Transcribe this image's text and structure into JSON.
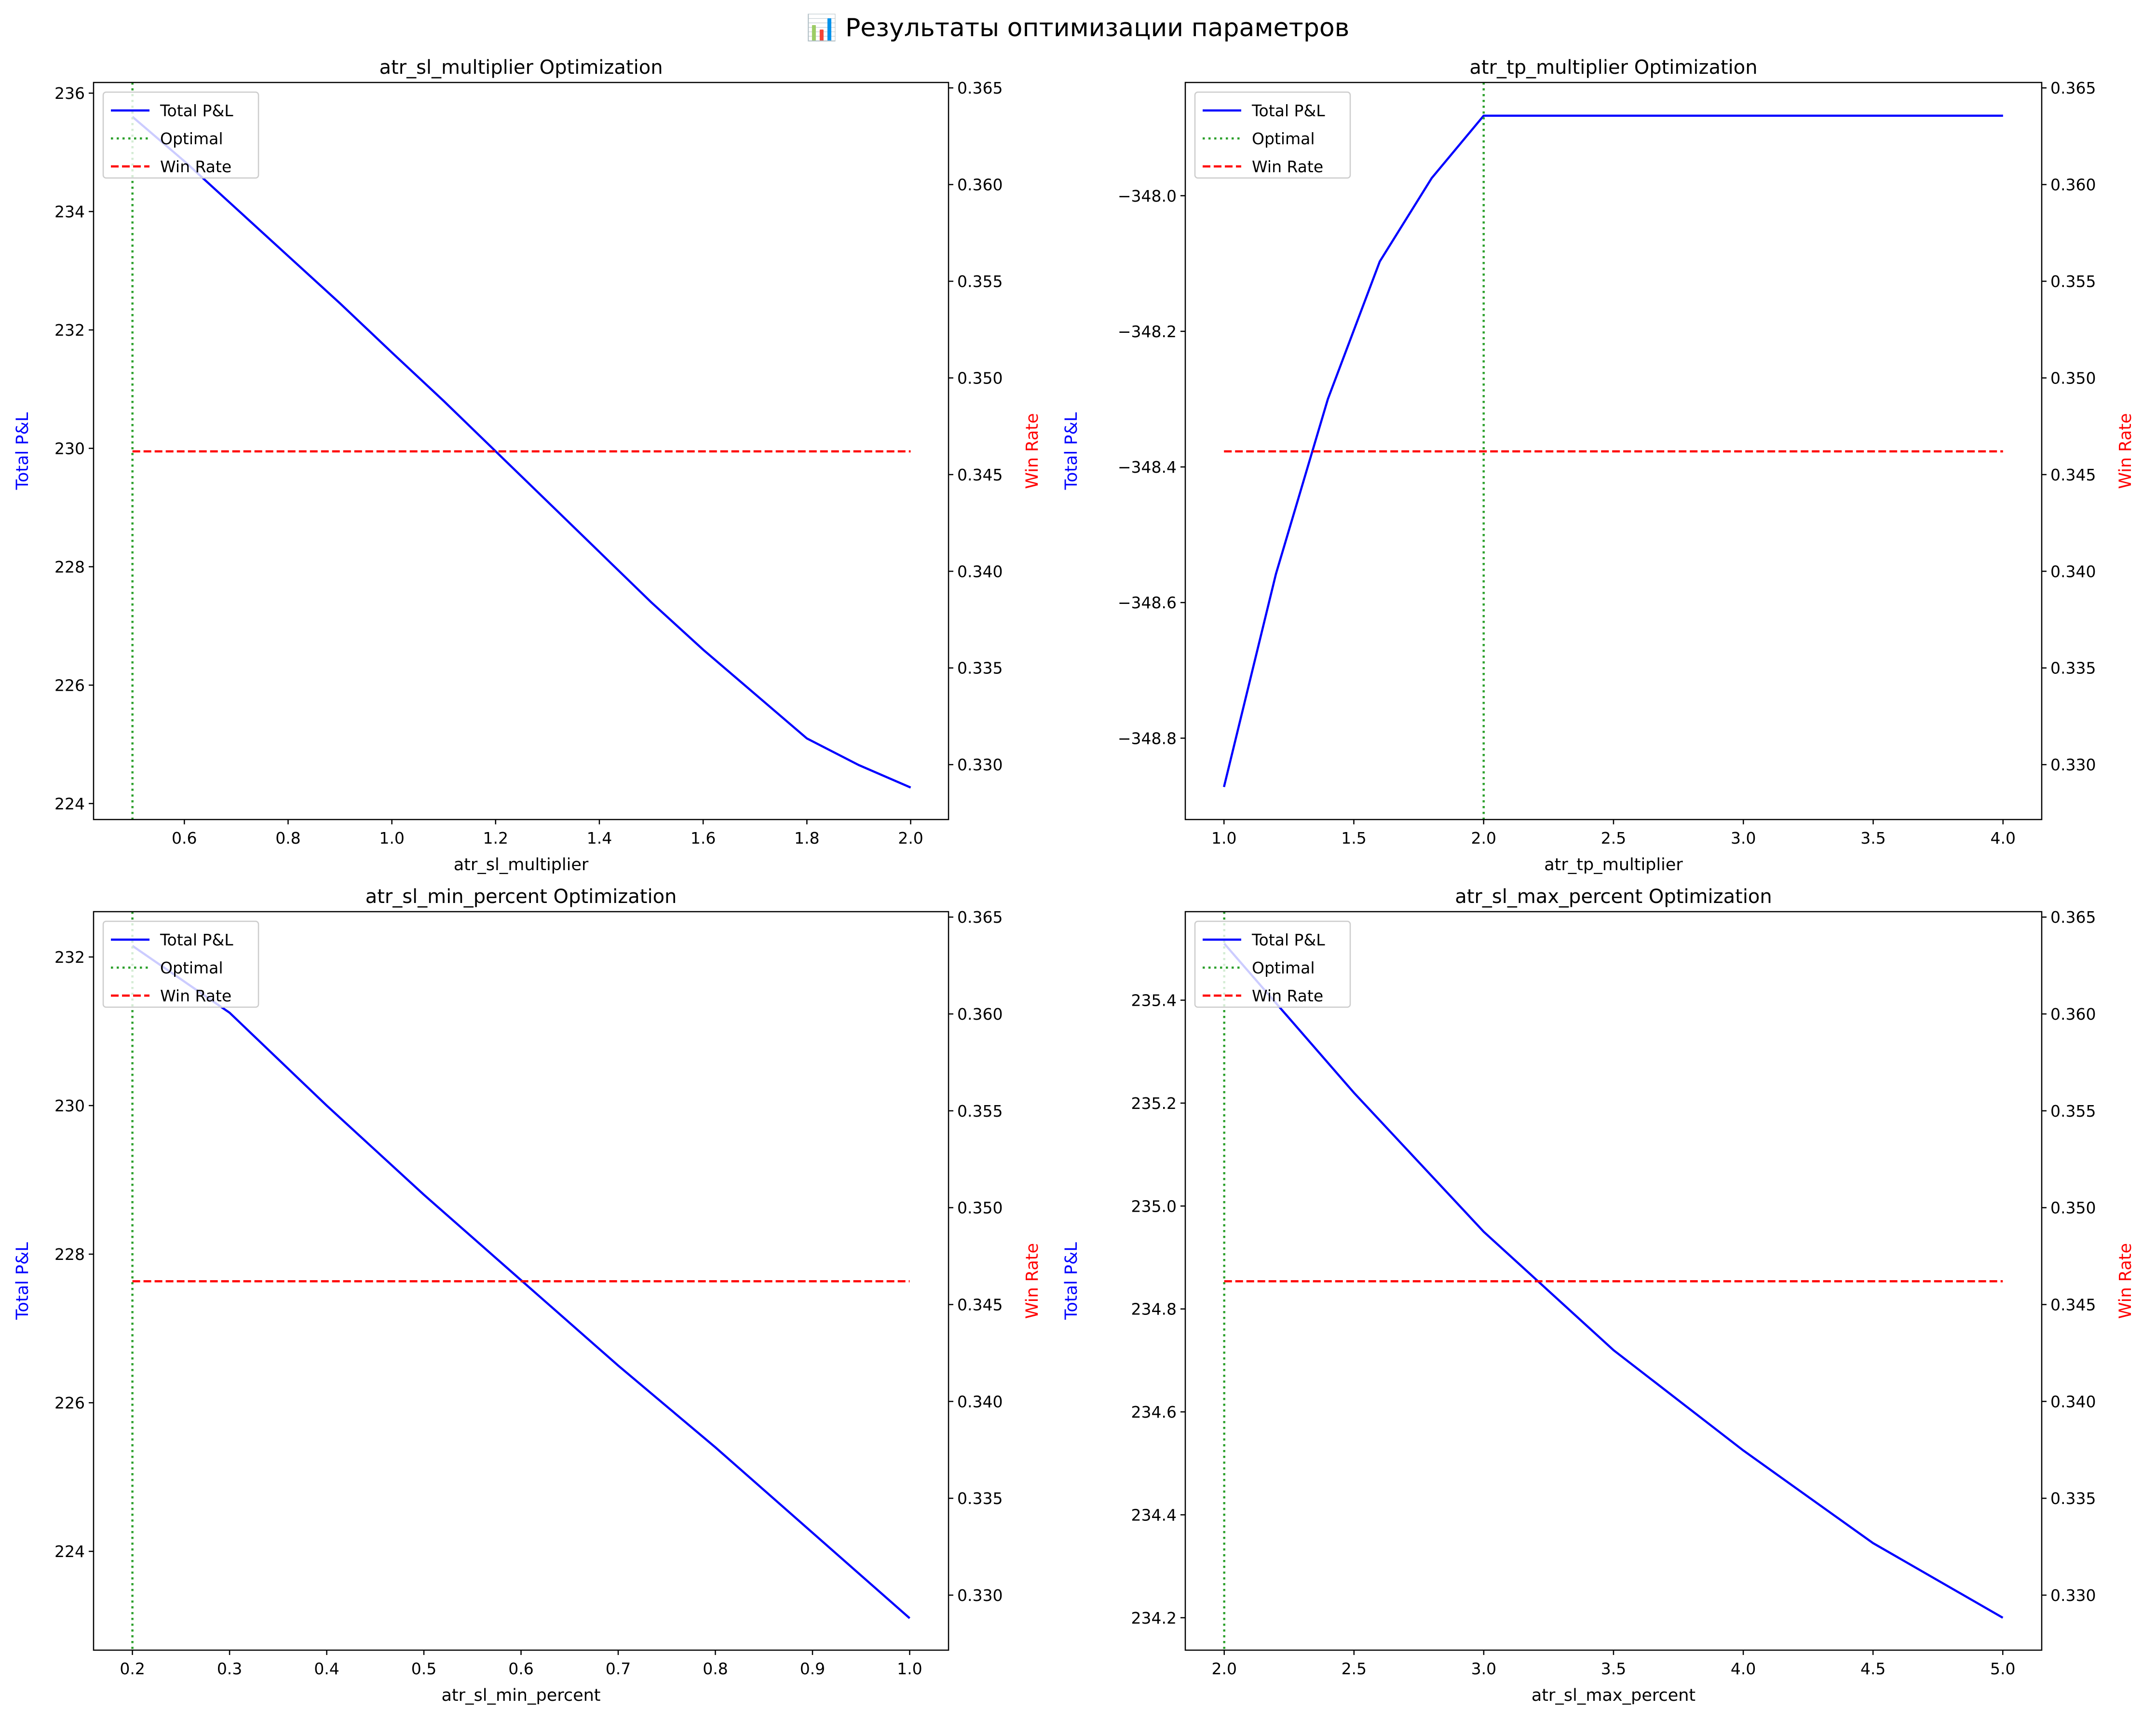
{
  "figure_title": "📊 Результаты оптимизации параметров",
  "legend": {
    "pnl": "Total P&L",
    "optimal": "Optimal",
    "win_rate": "Win Rate"
  },
  "colors": {
    "pnl": "#0000ff",
    "optimal": "#2ca02c",
    "win_rate": "#ff0000"
  },
  "chart_data": [
    {
      "type": "line",
      "title": "atr_sl_multiplier Optimization",
      "xlabel": "atr_sl_multiplier",
      "ylabel": "Total P&L",
      "y2label": "Win Rate",
      "x": [
        0.5,
        0.6,
        0.7,
        0.8,
        0.9,
        1.0,
        1.1,
        1.2,
        1.3,
        1.4,
        1.5,
        1.6,
        1.7,
        1.8,
        1.9,
        2.0
      ],
      "pnl": [
        235.6,
        234.85,
        234.05,
        233.25,
        232.45,
        231.62,
        230.8,
        229.95,
        229.1,
        228.25,
        227.4,
        226.6,
        225.85,
        225.1,
        224.65,
        224.27
      ],
      "win_rate": 0.3462,
      "optimal_x": 0.5,
      "xlim": [
        0.425,
        2.073
      ],
      "ylim": [
        223.73,
        236.18
      ],
      "y2lim": [
        0.32716,
        0.36528
      ],
      "xticks": [
        "0.6",
        "0.8",
        "1.0",
        "1.2",
        "1.4",
        "1.6",
        "1.8",
        "2.0"
      ],
      "yticks": [
        "224",
        "226",
        "228",
        "230",
        "232",
        "234",
        "236"
      ],
      "y2ticks": [
        "0.330",
        "0.335",
        "0.340",
        "0.345",
        "0.350",
        "0.355",
        "0.360",
        "0.365"
      ]
    },
    {
      "type": "line",
      "title": "atr_tp_multiplier Optimization",
      "xlabel": "atr_tp_multiplier",
      "ylabel": "Total P&L",
      "y2label": "Win Rate",
      "x": [
        1.0,
        1.2,
        1.4,
        1.6,
        1.8,
        2.0,
        2.5,
        3.0,
        3.5,
        4.0
      ],
      "pnl": [
        -348.872,
        -348.558,
        -348.3,
        -348.097,
        -347.974,
        -347.882,
        -347.882,
        -347.882,
        -347.882,
        -347.882
      ],
      "win_rate": 0.3462,
      "optimal_x": 2.0,
      "xlim": [
        0.851,
        4.149
      ],
      "ylim": [
        -348.92,
        -347.833
      ],
      "y2lim": [
        0.32716,
        0.36528
      ],
      "xticks": [
        "1.0",
        "1.5",
        "2.0",
        "2.5",
        "3.0",
        "3.5",
        "4.0"
      ],
      "yticks": [
        "−348.8",
        "−348.6",
        "−348.4",
        "−348.2",
        "−348.0"
      ],
      "y2ticks": [
        "0.330",
        "0.335",
        "0.340",
        "0.345",
        "0.350",
        "0.355",
        "0.360",
        "0.365"
      ]
    },
    {
      "type": "line",
      "title": "atr_sl_min_percent Optimization",
      "xlabel": "atr_sl_min_percent",
      "ylabel": "Total P&L",
      "y2label": "Win Rate",
      "x": [
        0.2,
        0.3,
        0.4,
        0.5,
        0.6,
        0.7,
        0.8,
        0.9,
        1.0
      ],
      "pnl": [
        232.15,
        231.25,
        230.0,
        228.8,
        227.65,
        226.5,
        225.4,
        224.25,
        223.1
      ],
      "win_rate": 0.3462,
      "optimal_x": 0.2,
      "xlim": [
        0.16,
        1.04
      ],
      "ylim": [
        222.67,
        232.61
      ],
      "y2lim": [
        0.32716,
        0.36528
      ],
      "xticks": [
        "0.2",
        "0.3",
        "0.4",
        "0.5",
        "0.6",
        "0.7",
        "0.8",
        "0.9",
        "1.0"
      ],
      "yticks": [
        "224",
        "226",
        "228",
        "230",
        "232"
      ],
      "y2ticks": [
        "0.330",
        "0.335",
        "0.340",
        "0.345",
        "0.350",
        "0.355",
        "0.360",
        "0.365"
      ]
    },
    {
      "type": "line",
      "title": "atr_sl_max_percent Optimization",
      "xlabel": "atr_sl_max_percent",
      "ylabel": "Total P&L",
      "y2label": "Win Rate",
      "x": [
        2.0,
        2.5,
        3.0,
        3.5,
        4.0,
        4.5,
        5.0
      ],
      "pnl": [
        235.51,
        235.22,
        234.95,
        234.72,
        234.525,
        234.345,
        234.2
      ],
      "win_rate": 0.3462,
      "optimal_x": 2.0,
      "xlim": [
        1.85,
        5.15
      ],
      "ylim": [
        234.137,
        235.572
      ],
      "y2lim": [
        0.32716,
        0.36528
      ],
      "xticks": [
        "2.0",
        "2.5",
        "3.0",
        "3.5",
        "4.0",
        "4.5",
        "5.0"
      ],
      "yticks": [
        "234.2",
        "234.4",
        "234.6",
        "234.8",
        "235.0",
        "235.2",
        "235.4"
      ],
      "y2ticks": [
        "0.330",
        "0.335",
        "0.340",
        "0.345",
        "0.350",
        "0.355",
        "0.360",
        "0.365"
      ]
    }
  ]
}
